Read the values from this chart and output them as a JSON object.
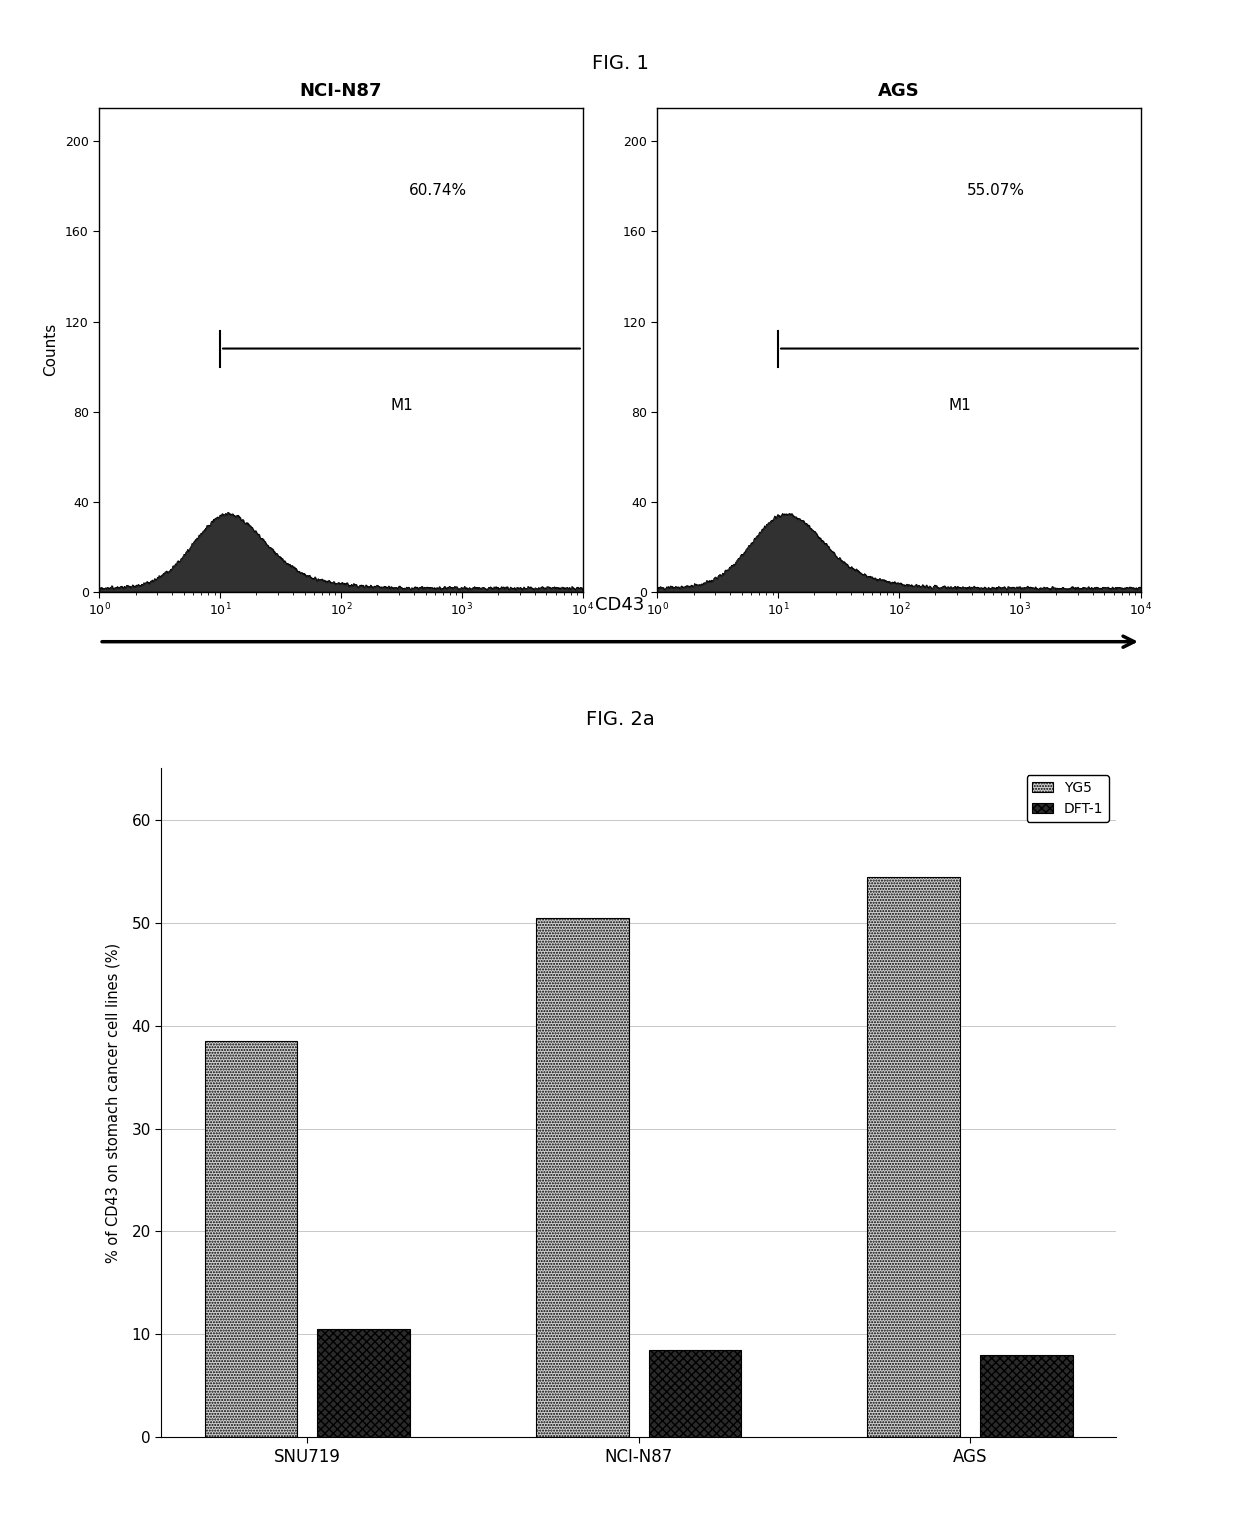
{
  "fig1_title": "FIG. 1",
  "fig2_title": "FIG. 2a",
  "plot1_title": "NCI-N87",
  "plot2_title": "AGS",
  "plot1_percent": "60.74%",
  "plot2_percent": "55.07%",
  "marker_label": "M1",
  "ylabel_flow": "Counts",
  "xlabel_flow": "CD43",
  "yticks_flow": [
    0,
    40,
    80,
    120,
    160,
    200
  ],
  "ylim_flow": [
    0,
    215
  ],
  "bar_categories": [
    "SNU719",
    "NCI-N87",
    "AGS"
  ],
  "bar_yg5": [
    38.5,
    50.5,
    54.5
  ],
  "bar_dft1": [
    10.5,
    8.5,
    8.0
  ],
  "bar_color_yg5": "#d0d0d0",
  "bar_color_dft1": "#2a2a2a",
  "bar_ylabel": "% of CD43 on stomach cancer cell lines (%)",
  "legend_yg5": "YG5",
  "legend_dft1": "DFT-1",
  "bar_ylim": [
    0,
    65
  ],
  "bar_yticks": [
    0,
    10,
    20,
    30,
    40,
    50,
    60
  ],
  "background_color": "#ffffff"
}
